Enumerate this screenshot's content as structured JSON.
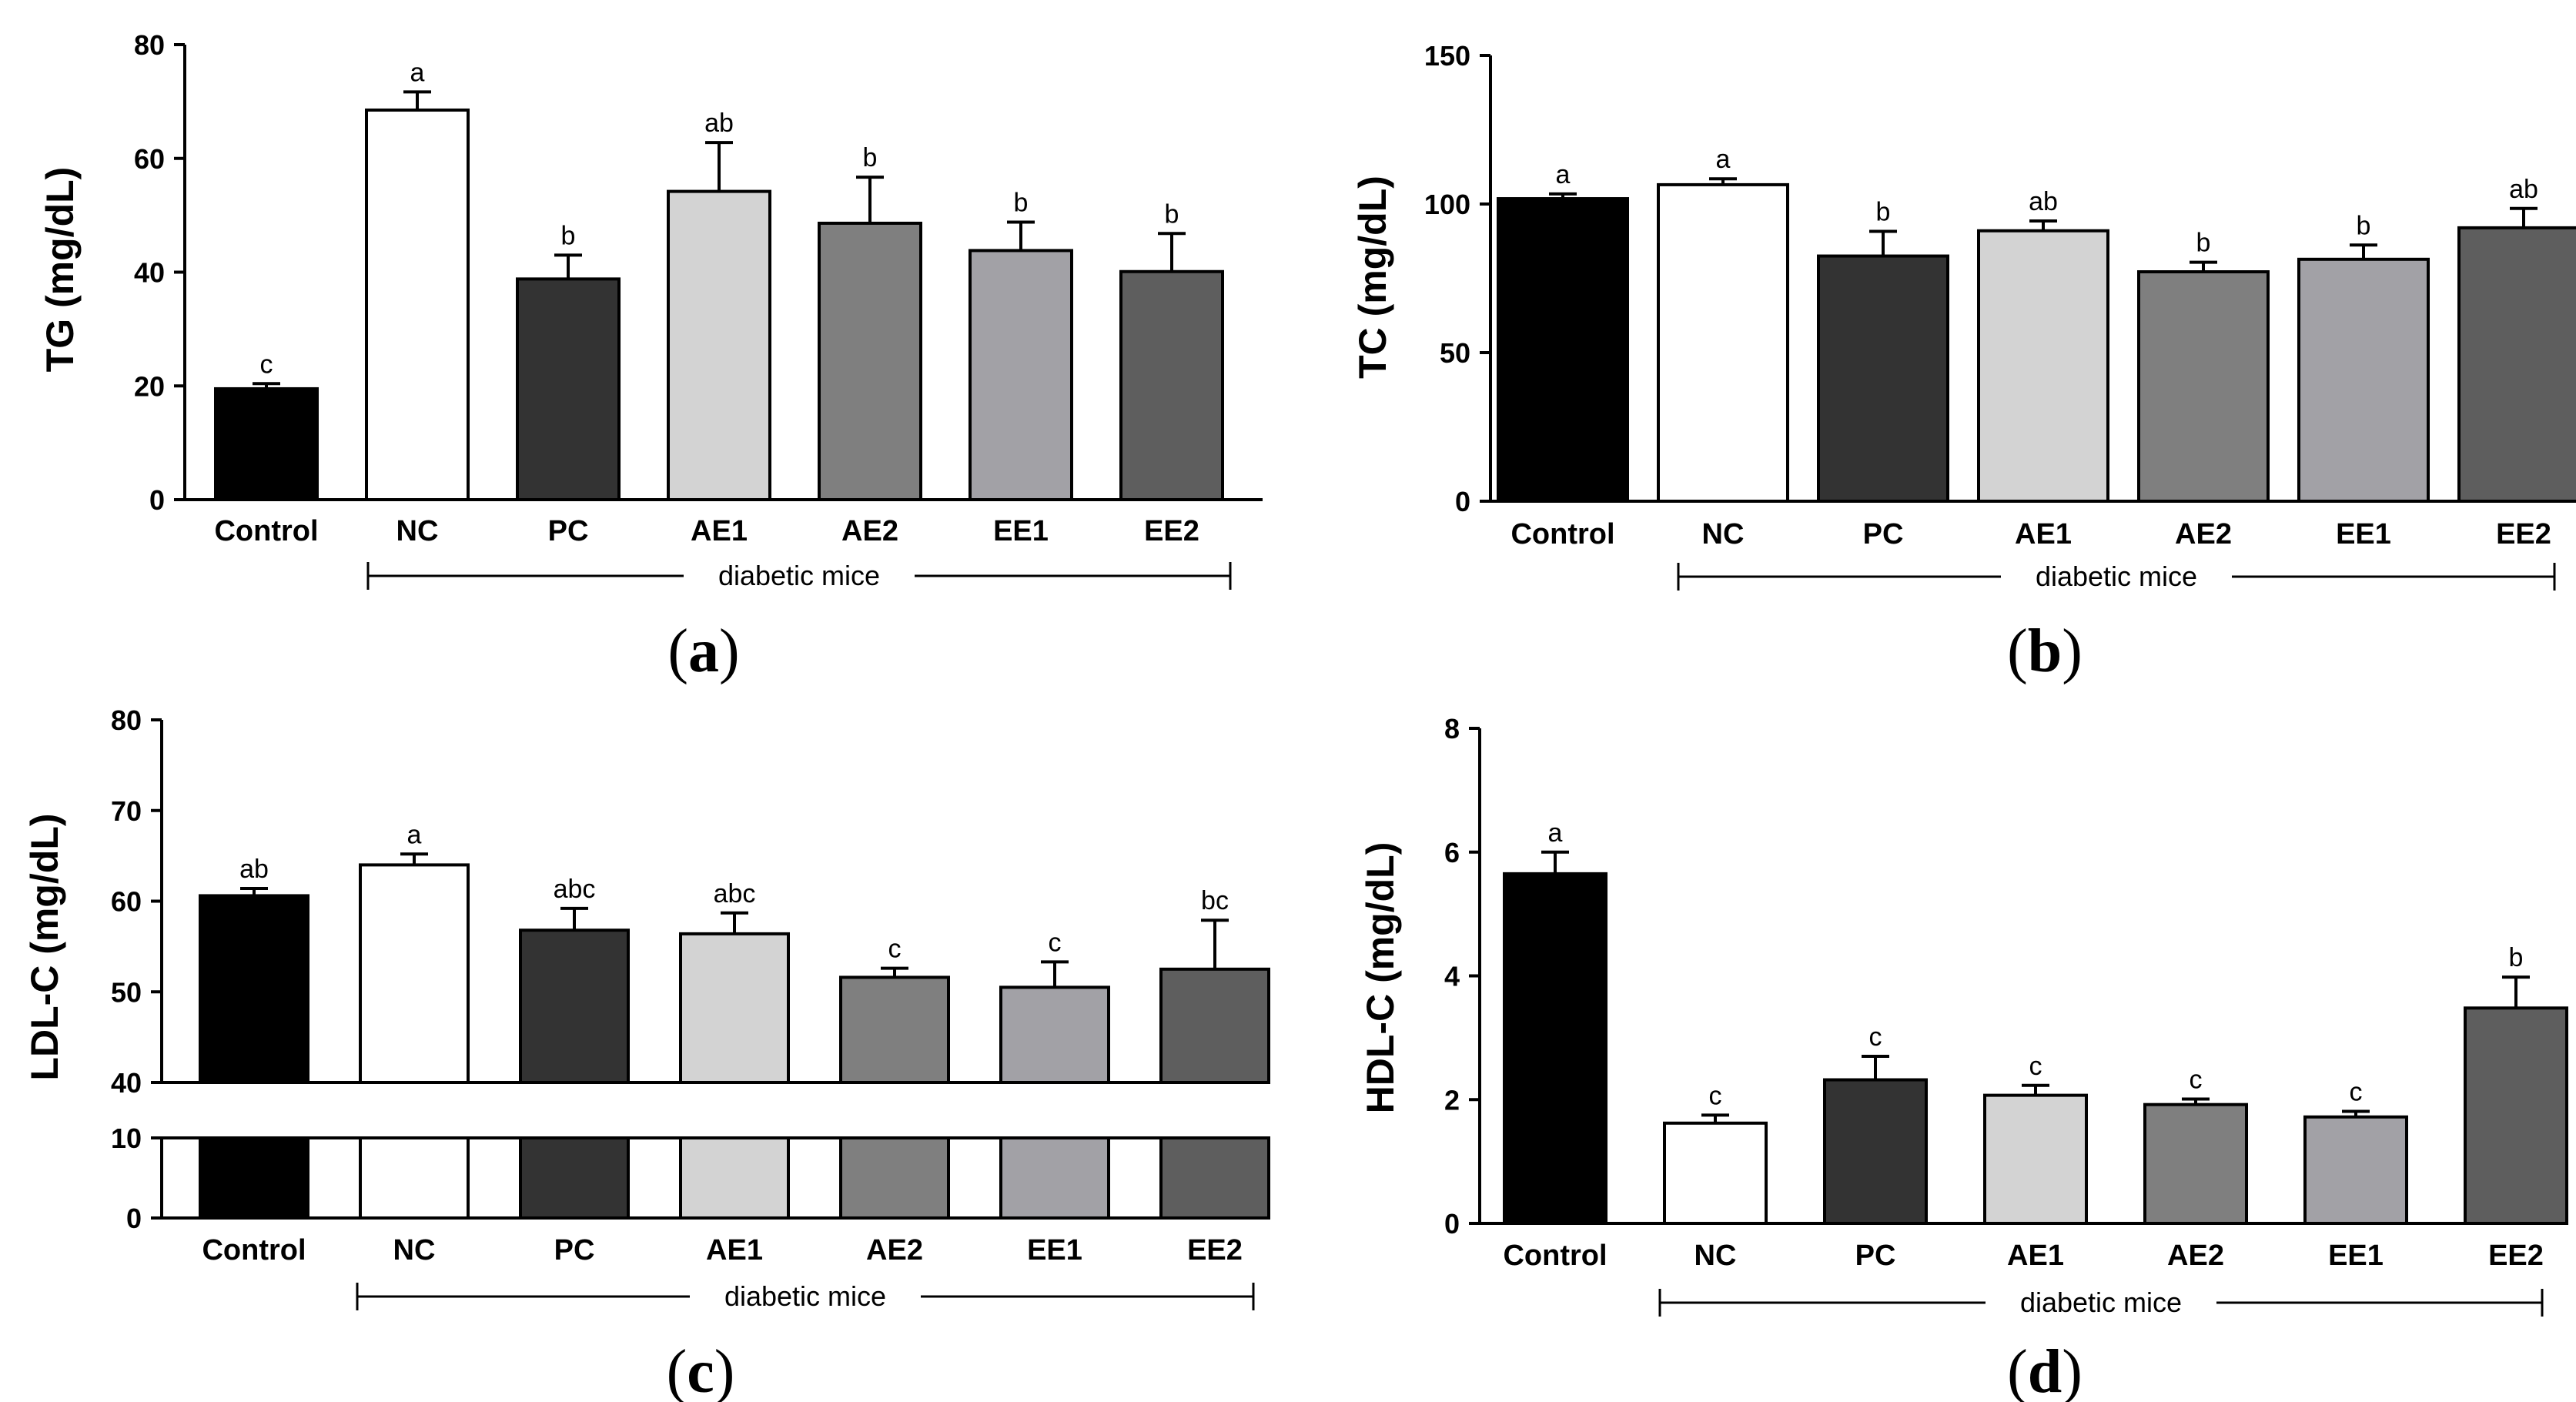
{
  "figure_group_label": "diabetic mice",
  "chart_data": [
    {
      "type": "bar",
      "panel": "(a)",
      "ylabel": "TG (mg/dL)",
      "categories": [
        "Control",
        "NC",
        "PC",
        "AE1",
        "AE2",
        "EE1",
        "EE2"
      ],
      "values": [
        19.5,
        68.5,
        38.8,
        54.2,
        48.6,
        43.8,
        40.1
      ],
      "errors": [
        0.9,
        3.2,
        4.2,
        8.6,
        8.1,
        5.0,
        6.7
      ],
      "letters": [
        "c",
        "a",
        "b",
        "ab",
        "b",
        "b",
        "b"
      ],
      "colors": [
        "#000000",
        "#ffffff",
        "#333333",
        "#d3d3d3",
        "#7f7f7f",
        "#a2a1a6",
        "#5e5e5e"
      ],
      "ylim": [
        0,
        80
      ],
      "yticks": [
        0,
        20,
        40,
        60,
        80
      ],
      "group_label": "diabetic mice"
    },
    {
      "type": "bar",
      "panel": "(b)",
      "ylabel": "TC (mg/dL)",
      "categories": [
        "Control",
        "NC",
        "PC",
        "AE1",
        "AE2",
        "EE1",
        "EE2"
      ],
      "values": [
        101.8,
        106.5,
        82.5,
        91.0,
        77.2,
        81.4,
        92.0
      ],
      "errors": [
        1.6,
        2.0,
        8.3,
        3.3,
        3.2,
        4.8,
        6.5
      ],
      "letters": [
        "a",
        "a",
        "b",
        "ab",
        "b",
        "b",
        "ab"
      ],
      "colors": [
        "#000000",
        "#ffffff",
        "#333333",
        "#d3d3d3",
        "#7f7f7f",
        "#a2a1a6",
        "#5e5e5e"
      ],
      "ylim": [
        0,
        150
      ],
      "yticks": [
        0,
        50,
        100,
        150
      ],
      "group_label": "diabetic mice"
    },
    {
      "type": "bar",
      "panel": "(c)",
      "ylabel": "LDL-C (mg/dL)",
      "categories": [
        "Control",
        "NC",
        "PC",
        "AE1",
        "AE2",
        "EE1",
        "EE2"
      ],
      "values": [
        60.6,
        64.0,
        56.8,
        56.4,
        51.6,
        50.5,
        52.5
      ],
      "errors": [
        0.8,
        1.2,
        2.4,
        2.3,
        1.0,
        2.8,
        5.4
      ],
      "letters": [
        "ab",
        "a",
        "abc",
        "abc",
        "c",
        "c",
        "bc"
      ],
      "colors": [
        "#000000",
        "#ffffff",
        "#333333",
        "#d3d3d3",
        "#7f7f7f",
        "#a2a1a6",
        "#5e5e5e"
      ],
      "axis_break": true,
      "lower_range": [
        0,
        10
      ],
      "upper_range": [
        40,
        80
      ],
      "yticks_lower": [
        0,
        10
      ],
      "yticks_upper": [
        40,
        50,
        60,
        70,
        80
      ],
      "group_label": "diabetic mice"
    },
    {
      "type": "bar",
      "panel": "(d)",
      "ylabel": "HDL-C (mg/dL)",
      "categories": [
        "Control",
        "NC",
        "PC",
        "AE1",
        "AE2",
        "EE1",
        "EE2"
      ],
      "values": [
        5.65,
        1.62,
        2.32,
        2.07,
        1.92,
        1.72,
        3.48
      ],
      "errors": [
        0.35,
        0.13,
        0.38,
        0.16,
        0.09,
        0.09,
        0.5
      ],
      "letters": [
        "a",
        "c",
        "c",
        "c",
        "c",
        "c",
        "b"
      ],
      "colors": [
        "#000000",
        "#ffffff",
        "#333333",
        "#d3d3d3",
        "#7f7f7f",
        "#a2a1a6",
        "#5e5e5e"
      ],
      "ylim": [
        0,
        8
      ],
      "yticks": [
        0,
        2,
        4,
        6,
        8
      ],
      "group_label": "diabetic mice"
    }
  ]
}
